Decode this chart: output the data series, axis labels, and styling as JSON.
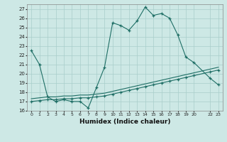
{
  "xlabel": "Humidex (Indice chaleur)",
  "ylabel": "",
  "background_color": "#cde8e5",
  "grid_color": "#a8ceca",
  "line_color": "#1e6e65",
  "xlim": [
    -0.5,
    23.5
  ],
  "ylim": [
    16,
    27.5
  ],
  "xticks": [
    0,
    1,
    2,
    3,
    4,
    5,
    6,
    7,
    8,
    9,
    10,
    11,
    12,
    13,
    14,
    15,
    16,
    17,
    18,
    19,
    20,
    22,
    23
  ],
  "yticks": [
    16,
    17,
    18,
    19,
    20,
    21,
    22,
    23,
    24,
    25,
    26,
    27
  ],
  "line1_x": [
    0,
    1,
    2,
    3,
    4,
    5,
    6,
    7,
    8,
    9,
    10,
    11,
    12,
    13,
    14,
    15,
    16,
    17,
    18,
    19,
    20,
    22,
    23
  ],
  "line1_y": [
    22.5,
    21.0,
    17.5,
    17.0,
    17.2,
    17.0,
    17.0,
    16.3,
    18.5,
    20.7,
    25.5,
    25.2,
    24.7,
    25.7,
    27.2,
    26.3,
    26.5,
    26.0,
    24.2,
    21.8,
    21.2,
    19.5,
    18.8
  ],
  "line2_x": [
    0,
    1,
    2,
    3,
    4,
    5,
    6,
    7,
    8,
    9,
    10,
    11,
    12,
    13,
    14,
    15,
    16,
    17,
    18,
    19,
    20,
    22,
    23
  ],
  "line2_y": [
    17.0,
    17.1,
    17.2,
    17.2,
    17.3,
    17.3,
    17.4,
    17.4,
    17.5,
    17.6,
    17.8,
    18.0,
    18.2,
    18.4,
    18.6,
    18.8,
    19.0,
    19.2,
    19.4,
    19.6,
    19.8,
    20.2,
    20.4
  ],
  "line3_x": [
    0,
    1,
    2,
    3,
    4,
    5,
    6,
    7,
    8,
    9,
    10,
    11,
    12,
    13,
    14,
    15,
    16,
    17,
    18,
    19,
    20,
    22,
    23
  ],
  "line3_y": [
    17.3,
    17.4,
    17.5,
    17.5,
    17.6,
    17.6,
    17.7,
    17.7,
    17.8,
    17.9,
    18.1,
    18.3,
    18.5,
    18.7,
    18.9,
    19.1,
    19.3,
    19.5,
    19.7,
    19.9,
    20.1,
    20.5,
    20.7
  ]
}
